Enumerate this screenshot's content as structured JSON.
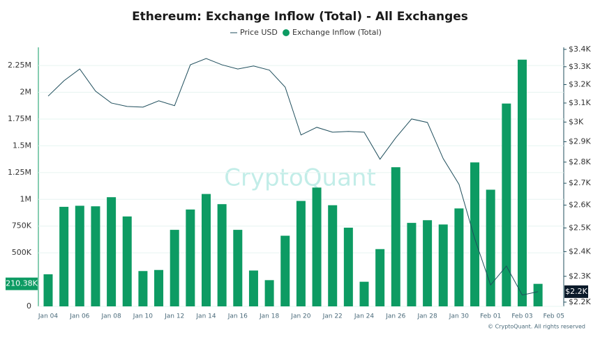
{
  "chart_data": {
    "type": "bar-line",
    "title": "Ethereum: Exchange Inflow (Total) - All Exchanges",
    "watermark": "CryptoQuant",
    "footer": "© CryptoQuant. All rights reserved",
    "categories": [
      "Jan 04",
      null,
      "Jan 06",
      null,
      "Jan 08",
      null,
      "Jan 10",
      null,
      "Jan 12",
      null,
      "Jan 14",
      null,
      "Jan 16",
      null,
      "Jan 18",
      null,
      "Jan 20",
      null,
      "Jan 22",
      null,
      "Jan 24",
      null,
      "Jan 26",
      null,
      "Jan 28",
      null,
      "Jan 30",
      null,
      "Feb 01",
      null,
      "Feb 03",
      null,
      "Feb 05"
    ],
    "series": [
      {
        "name": "Price USD",
        "type": "line",
        "axis": "y2",
        "color": "#1f4e5c",
        "values": [
          3137,
          3221,
          3287,
          3164,
          3100,
          3082,
          3078,
          3112,
          3086,
          3311,
          3347,
          3311,
          3287,
          3304,
          3281,
          3186,
          2934,
          2973,
          2948,
          2952,
          2948,
          2814,
          2920,
          3016,
          2998,
          2817,
          2695,
          2453,
          2266,
          2341,
          2227,
          2240,
          null
        ]
      },
      {
        "name": "Exchange Inflow (Total)",
        "type": "bar",
        "color": "#0d9b63",
        "values": [
          300000,
          930000,
          940000,
          935000,
          1020000,
          840000,
          330000,
          340000,
          715000,
          905000,
          1050000,
          955000,
          715000,
          335000,
          245000,
          660000,
          985000,
          1110000,
          945000,
          735000,
          230000,
          535000,
          1300000,
          780000,
          805000,
          765000,
          915000,
          1345000,
          1090000,
          1895000,
          2305000,
          210380,
          null
        ]
      }
    ],
    "ylim": [
      0,
      2420000
    ],
    "yticks": [
      0,
      {
        "value": 500000,
        "label": "500K"
      },
      {
        "value": 750000,
        "label": "750K"
      },
      {
        "value": 1000000,
        "label": "1M"
      },
      {
        "value": 1250000,
        "label": "1.25M"
      },
      {
        "value": 1500000,
        "label": "1.5M"
      },
      {
        "value": 1750000,
        "label": "1.75M"
      },
      {
        "value": 2000000,
        "label": "2M"
      },
      {
        "value": 2250000,
        "label": "2.25M"
      }
    ],
    "y2lim": [
      2184,
      3412
    ],
    "y2_log": true,
    "y2ticks": [
      {
        "value": 2200,
        "label": "$2.2K"
      },
      {
        "value": 2300,
        "label": "$2.3K"
      },
      {
        "value": 2400,
        "label": "$2.4K"
      },
      {
        "value": 2500,
        "label": "$2.5K"
      },
      {
        "value": 2600,
        "label": "$2.6K"
      },
      {
        "value": 2700,
        "label": "$2.7K"
      },
      {
        "value": 2800,
        "label": "$2.8K"
      },
      {
        "value": 2900,
        "label": "$2.9K"
      },
      {
        "value": 3000,
        "label": "$3K"
      },
      {
        "value": 3100,
        "label": "$3.1K"
      },
      {
        "value": 3200,
        "label": "$3.2K"
      },
      {
        "value": 3300,
        "label": "$3.3K"
      },
      {
        "value": 3400,
        "label": "$3.4K"
      }
    ],
    "grid": true,
    "last_values": [
      {
        "value": 210380,
        "label": "210.38K",
        "axis": "y",
        "color": "#0d9b63"
      },
      {
        "value": 2240,
        "label": "$2.2K",
        "axis": "y2",
        "color": "#0b1a2a"
      }
    ]
  }
}
